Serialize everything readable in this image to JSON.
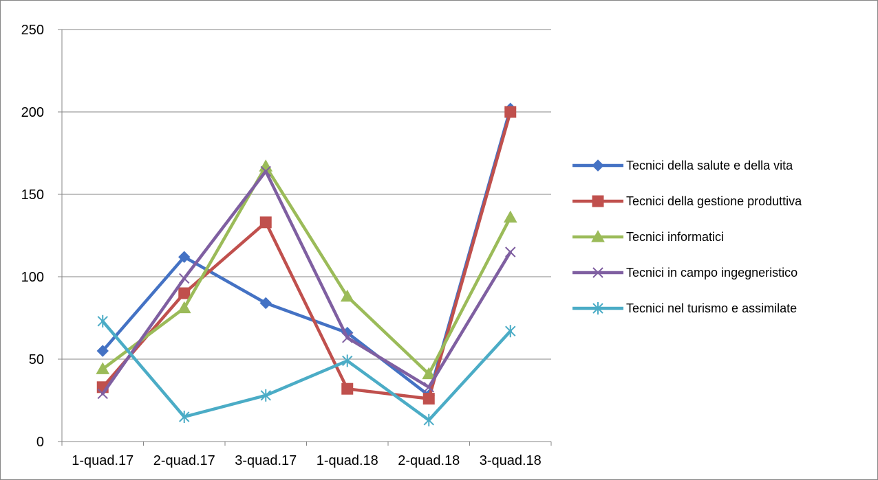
{
  "chart_data": {
    "type": "line",
    "title": "",
    "xlabel": "",
    "ylabel": "",
    "categories": [
      "1-quad.17",
      "2-quad.17",
      "3-quad.17",
      "1-quad.18",
      "2-quad.18",
      "3-quad.18"
    ],
    "ylim": [
      0,
      250
    ],
    "yticks": [
      0,
      50,
      100,
      150,
      200,
      250
    ],
    "grid": "horizontal",
    "legend_position": "right",
    "series": [
      {
        "name": "Tecnici della salute e della vita",
        "color": "#4472C4",
        "marker": "diamond",
        "values": [
          55,
          112,
          84,
          66,
          28,
          202
        ]
      },
      {
        "name": "Tecnici della gestione produttiva",
        "color": "#C0504D",
        "marker": "square",
        "values": [
          33,
          90,
          133,
          32,
          26,
          200
        ]
      },
      {
        "name": "Tecnici informatici",
        "color": "#9BBB59",
        "marker": "triangle",
        "values": [
          44,
          81,
          167,
          88,
          41,
          136
        ]
      },
      {
        "name": "Tecnici in campo ingegneristico",
        "color": "#7F5FA1",
        "marker": "x",
        "values": [
          29,
          99,
          164,
          63,
          33,
          115
        ]
      },
      {
        "name": "Tecnici nel turismo e assimilate",
        "color": "#4BACC6",
        "marker": "star",
        "values": [
          73,
          15,
          28,
          49,
          13,
          67
        ]
      }
    ]
  }
}
